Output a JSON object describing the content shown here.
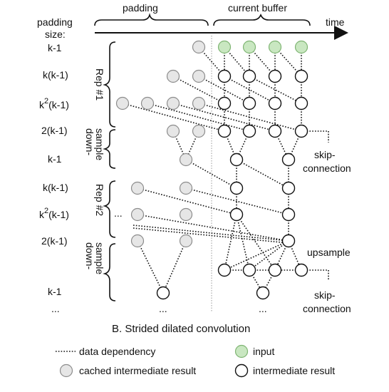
{
  "header": {
    "padding_size_line1": "padding",
    "padding_size_line2": "size:",
    "padding_label": "padding",
    "current_buffer_label": "current buffer",
    "time_label": "time"
  },
  "rows": {
    "r1": "k-1",
    "r2": "k(k-1)",
    "r3_base": "k",
    "r3_sup": "2",
    "r3_rest": "(k-1)",
    "r4": "2(k-1)",
    "r5": "k-1",
    "r6": "k(k-1)",
    "r7_base": "k",
    "r7_sup": "2",
    "r7_rest": "(k-1)",
    "r8": "2(k-1)",
    "r9": "k-1",
    "r10": "..."
  },
  "groups": {
    "rep1": "Rep #1",
    "downsample_a": "down-",
    "downsample_b": "sample",
    "rep2": "Rep #2",
    "downsample2_a": "down-",
    "downsample2_b": "sample"
  },
  "annotations": {
    "skip1_a": "skip-",
    "skip1_b": "connection",
    "upsample": "upsample",
    "skip2_a": "skip-",
    "skip2_b": "connection",
    "ellipsis_left": "...",
    "ellipsis_mid_pad": "...",
    "ellipsis_mid_buf": "..."
  },
  "caption": "B. Strided dilated convolution",
  "legend": {
    "data_dependency": "data dependency",
    "input": "input",
    "cached": "cached intermediate result",
    "intermediate": "intermediate result"
  },
  "colors": {
    "input_fill": "#c9e7c1",
    "cached_fill": "#e6e6e6",
    "intermediate_fill": "#ffffff"
  }
}
